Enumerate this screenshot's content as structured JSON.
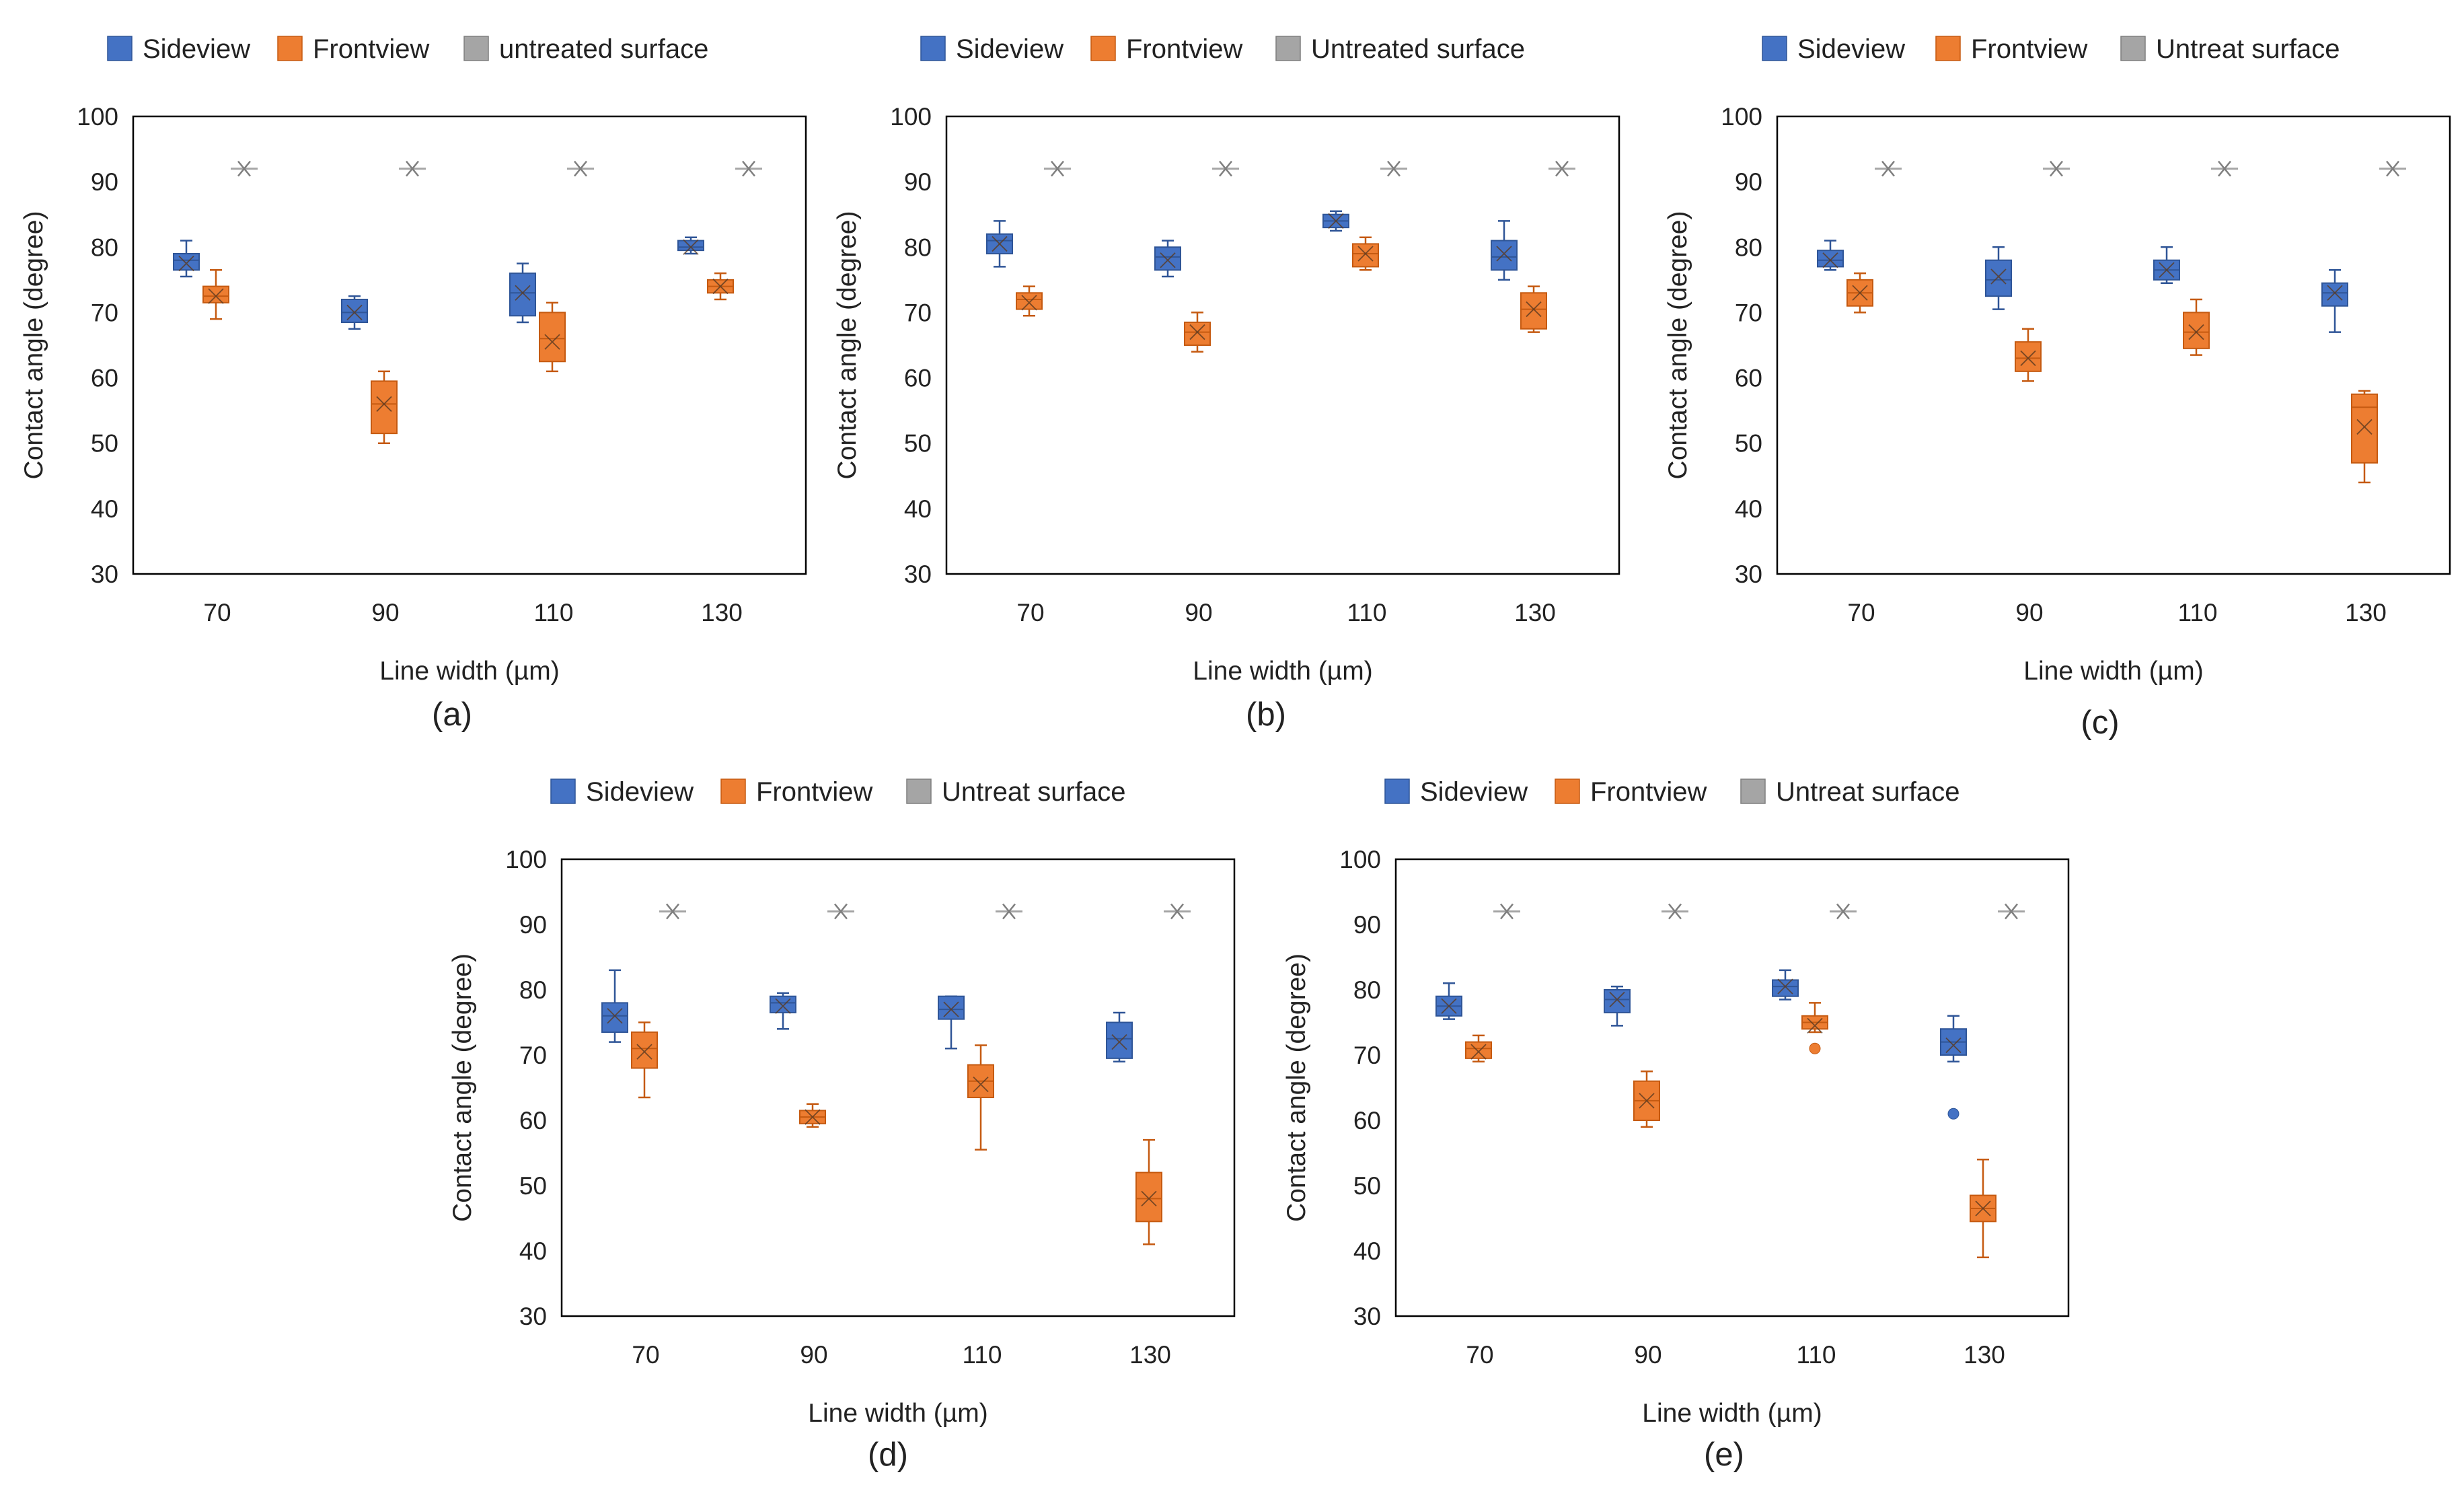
{
  "colors": {
    "side": "#4472c4",
    "side_edge": "#2f5597",
    "front": "#ed7d31",
    "front_edge": "#c55a11",
    "untreated": "#a5a5a5",
    "untreated_edge": "#7f7f7f"
  },
  "chart_data": [
    {
      "id": "a",
      "type": "box",
      "caption": "(a)",
      "legend": [
        "Sideview",
        "Frontview",
        "untreated surface"
      ],
      "xlabel": "Line width (µm)",
      "ylabel": "Contact angle (degree)",
      "categories": [
        "70",
        "90",
        "110",
        "130"
      ],
      "ylim": [
        30,
        100
      ],
      "yticks": [
        "30",
        "40",
        "50",
        "60",
        "70",
        "80",
        "90",
        "100"
      ],
      "series": [
        {
          "name": "Sideview",
          "boxes": [
            {
              "min": 75.5,
              "q1": 76.5,
              "median": 78,
              "q3": 79,
              "max": 81,
              "mean": 77.5,
              "outliers": []
            },
            {
              "min": 67.5,
              "q1": 68.5,
              "median": 70,
              "q3": 72,
              "max": 72.5,
              "mean": 70,
              "outliers": []
            },
            {
              "min": 68.5,
              "q1": 69.5,
              "median": 73,
              "q3": 76,
              "max": 77.5,
              "mean": 73,
              "outliers": []
            },
            {
              "min": 79,
              "q1": 79.5,
              "median": 80,
              "q3": 81,
              "max": 81.5,
              "mean": 80,
              "outliers": []
            }
          ]
        },
        {
          "name": "Frontview",
          "boxes": [
            {
              "min": 69,
              "q1": 71.5,
              "median": 72.5,
              "q3": 74,
              "max": 76.5,
              "mean": 72.5,
              "outliers": []
            },
            {
              "min": 50,
              "q1": 51.5,
              "median": 56,
              "q3": 59.5,
              "max": 61,
              "mean": 56,
              "outliers": []
            },
            {
              "min": 61,
              "q1": 62.5,
              "median": 66,
              "q3": 70,
              "max": 71.5,
              "mean": 65.5,
              "outliers": []
            },
            {
              "min": 72,
              "q1": 73,
              "median": 74,
              "q3": 75,
              "max": 76,
              "mean": 74,
              "outliers": []
            }
          ]
        },
        {
          "name": "untreated surface",
          "points": [
            92,
            92,
            92,
            92
          ]
        }
      ]
    },
    {
      "id": "b",
      "type": "box",
      "caption": "(b)",
      "legend": [
        "Sideview",
        "Frontview",
        "Untreated surface"
      ],
      "xlabel": "Line width (µm)",
      "ylabel": "Contact angle (degree)",
      "categories": [
        "70",
        "90",
        "110",
        "130"
      ],
      "ylim": [
        30,
        100
      ],
      "yticks": [
        "30",
        "40",
        "50",
        "60",
        "70",
        "80",
        "90",
        "100"
      ],
      "series": [
        {
          "name": "Sideview",
          "boxes": [
            {
              "min": 77,
              "q1": 79,
              "median": 81,
              "q3": 82,
              "max": 84,
              "mean": 80.5,
              "outliers": []
            },
            {
              "min": 75.5,
              "q1": 76.5,
              "median": 78.5,
              "q3": 80,
              "max": 81,
              "mean": 78,
              "outliers": []
            },
            {
              "min": 82.5,
              "q1": 83,
              "median": 84,
              "q3": 85,
              "max": 85.5,
              "mean": 84,
              "outliers": []
            },
            {
              "min": 75,
              "q1": 76.5,
              "median": 78.5,
              "q3": 81,
              "max": 84,
              "mean": 79,
              "outliers": []
            }
          ]
        },
        {
          "name": "Frontview",
          "boxes": [
            {
              "min": 69.5,
              "q1": 70.5,
              "median": 72,
              "q3": 73,
              "max": 74,
              "mean": 71.5,
              "outliers": []
            },
            {
              "min": 64,
              "q1": 65,
              "median": 67,
              "q3": 68.5,
              "max": 70,
              "mean": 67,
              "outliers": []
            },
            {
              "min": 76.5,
              "q1": 77,
              "median": 79,
              "q3": 80.5,
              "max": 81.5,
              "mean": 79,
              "outliers": []
            },
            {
              "min": 67,
              "q1": 67.5,
              "median": 70.5,
              "q3": 73,
              "max": 74,
              "mean": 70.5,
              "outliers": []
            }
          ]
        },
        {
          "name": "Untreated surface",
          "points": [
            92,
            92,
            92,
            92
          ]
        }
      ]
    },
    {
      "id": "c",
      "type": "box",
      "caption": "(c)",
      "legend": [
        "Sideview",
        "Frontview",
        "Untreat surface"
      ],
      "xlabel": "Line width (µm)",
      "ylabel": "Contact angle (degree)",
      "categories": [
        "70",
        "90",
        "110",
        "130"
      ],
      "ylim": [
        30,
        100
      ],
      "yticks": [
        "30",
        "40",
        "50",
        "60",
        "70",
        "80",
        "90",
        "100"
      ],
      "series": [
        {
          "name": "Sideview",
          "boxes": [
            {
              "min": 76.5,
              "q1": 77,
              "median": 78,
              "q3": 79.5,
              "max": 81,
              "mean": 78,
              "outliers": []
            },
            {
              "min": 70.5,
              "q1": 72.5,
              "median": 75,
              "q3": 78,
              "max": 80,
              "mean": 75.5,
              "outliers": []
            },
            {
              "min": 74.5,
              "q1": 75,
              "median": 76.5,
              "q3": 78,
              "max": 80,
              "mean": 76.5,
              "outliers": []
            },
            {
              "min": 67,
              "q1": 71,
              "median": 73,
              "q3": 74.5,
              "max": 76.5,
              "mean": 73,
              "outliers": []
            }
          ]
        },
        {
          "name": "Frontview",
          "boxes": [
            {
              "min": 70,
              "q1": 71,
              "median": 73,
              "q3": 75,
              "max": 76,
              "mean": 73,
              "outliers": []
            },
            {
              "min": 59.5,
              "q1": 61,
              "median": 63,
              "q3": 65.5,
              "max": 67.5,
              "mean": 63,
              "outliers": []
            },
            {
              "min": 63.5,
              "q1": 64.5,
              "median": 67,
              "q3": 70,
              "max": 72,
              "mean": 67,
              "outliers": []
            },
            {
              "min": 44,
              "q1": 47,
              "median": 55.5,
              "q3": 57.5,
              "max": 58,
              "mean": 52.5,
              "outliers": []
            }
          ]
        },
        {
          "name": "Untreat surface",
          "points": [
            92,
            92,
            92,
            92
          ]
        }
      ]
    },
    {
      "id": "d",
      "type": "box",
      "caption": "(d)",
      "legend": [
        "Sideview",
        "Frontview",
        "Untreat surface"
      ],
      "xlabel": "Line width (µm)",
      "ylabel": "Contact angle (degree)",
      "categories": [
        "70",
        "90",
        "110",
        "130"
      ],
      "ylim": [
        30,
        100
      ],
      "yticks": [
        "30",
        "40",
        "50",
        "60",
        "70",
        "80",
        "90",
        "100"
      ],
      "series": [
        {
          "name": "Sideview",
          "boxes": [
            {
              "min": 72,
              "q1": 73.5,
              "median": 76,
              "q3": 78,
              "max": 83,
              "mean": 76,
              "outliers": []
            },
            {
              "min": 74,
              "q1": 76.5,
              "median": 78,
              "q3": 79,
              "max": 79.5,
              "mean": 77.5,
              "outliers": []
            },
            {
              "min": 71,
              "q1": 75.5,
              "median": 77,
              "q3": 79,
              "max": 79,
              "mean": 77,
              "outliers": []
            },
            {
              "min": 69,
              "q1": 69.5,
              "median": 72.5,
              "q3": 75,
              "max": 76.5,
              "mean": 72,
              "outliers": []
            }
          ]
        },
        {
          "name": "Frontview",
          "boxes": [
            {
              "min": 63.5,
              "q1": 68,
              "median": 71,
              "q3": 73.5,
              "max": 75,
              "mean": 70.5,
              "outliers": []
            },
            {
              "min": 59,
              "q1": 59.5,
              "median": 60.5,
              "q3": 61.5,
              "max": 62.5,
              "mean": 60.5,
              "outliers": []
            },
            {
              "min": 55.5,
              "q1": 63.5,
              "median": 66,
              "q3": 68.5,
              "max": 71.5,
              "mean": 65.5,
              "outliers": []
            },
            {
              "min": 41,
              "q1": 44.5,
              "median": 48,
              "q3": 52,
              "max": 57,
              "mean": 48,
              "outliers": []
            }
          ]
        },
        {
          "name": "Untreat surface",
          "points": [
            92,
            92,
            92,
            92
          ]
        }
      ]
    },
    {
      "id": "e",
      "type": "box",
      "caption": "(e)",
      "legend": [
        "Sideview",
        "Frontview",
        "Untreat surface"
      ],
      "xlabel": "Line width (µm)",
      "ylabel": "Contact angle (degree)",
      "categories": [
        "70",
        "90",
        "110",
        "130"
      ],
      "ylim": [
        30,
        100
      ],
      "yticks": [
        "30",
        "40",
        "50",
        "60",
        "70",
        "80",
        "90",
        "100"
      ],
      "series": [
        {
          "name": "Sideview",
          "boxes": [
            {
              "min": 75.5,
              "q1": 76,
              "median": 77.5,
              "q3": 79,
              "max": 81,
              "mean": 77.5,
              "outliers": []
            },
            {
              "min": 74.5,
              "q1": 76.5,
              "median": 78.5,
              "q3": 80,
              "max": 80.5,
              "mean": 78.5,
              "outliers": []
            },
            {
              "min": 78.5,
              "q1": 79,
              "median": 80.5,
              "q3": 81.5,
              "max": 83,
              "mean": 80.5,
              "outliers": []
            },
            {
              "min": 69,
              "q1": 70,
              "median": 72,
              "q3": 74,
              "max": 76,
              "mean": 71.5,
              "outliers": [
                61
              ]
            }
          ]
        },
        {
          "name": "Frontview",
          "boxes": [
            {
              "min": 69,
              "q1": 69.5,
              "median": 71,
              "q3": 72,
              "max": 73,
              "mean": 70.5,
              "outliers": []
            },
            {
              "min": 59,
              "q1": 60,
              "median": 63,
              "q3": 66,
              "max": 67.5,
              "mean": 63,
              "outliers": []
            },
            {
              "min": 73.5,
              "q1": 74,
              "median": 75,
              "q3": 76,
              "max": 78,
              "mean": 74.5,
              "outliers": [
                71
              ]
            },
            {
              "min": 39,
              "q1": 44.5,
              "median": 46.5,
              "q3": 48.5,
              "max": 54,
              "mean": 46.5,
              "outliers": []
            }
          ]
        },
        {
          "name": "Untreat surface",
          "points": [
            92,
            92,
            92,
            92
          ]
        }
      ]
    }
  ]
}
